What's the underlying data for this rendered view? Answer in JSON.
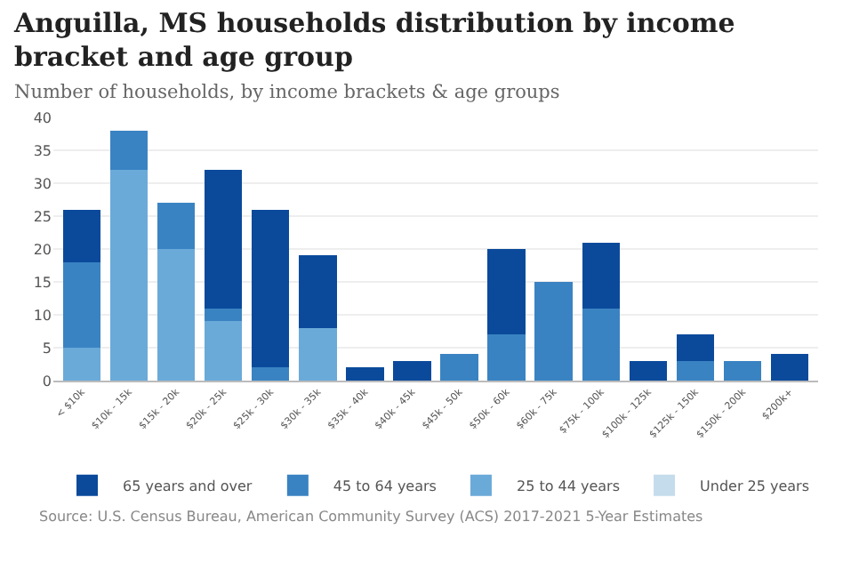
{
  "chart_data": {
    "type": "bar",
    "title": "Anguilla, MS households distribution by income bracket and age group",
    "subtitle": "Number of households, by income brackets & age groups",
    "annotations": [
      "Source: U.S. Census Bureau, American Community Survey (ACS) 2017-2021 5-Year Estimates"
    ],
    "categories": [
      "< $10k",
      "$10k - 15k",
      "$15k - 20k",
      "$20k - 25k",
      "$25k - 30k",
      "$30k - 35k",
      "$35k - 40k",
      "$40k - 45k",
      "$45k - 50k",
      "$50k - 60k",
      "$60k - 75k",
      "$75k - 100k",
      "$100k - 125k",
      "$125k - 150k",
      "$150k - 200k",
      "$200k+"
    ],
    "stacked": true,
    "ylim": [
      0,
      40
    ],
    "yticks": [
      0,
      5,
      10,
      15,
      20,
      25,
      30,
      35,
      40
    ],
    "grid": "y",
    "legend": "bottom",
    "series": [
      {
        "name": "Under 25 years",
        "color": "#c5dcec",
        "values": [
          0,
          0,
          0,
          0,
          0,
          0,
          0,
          0,
          0,
          0,
          0,
          0,
          0,
          0,
          0,
          0
        ]
      },
      {
        "name": "25 to 44 years",
        "color": "#6aaad9",
        "values": [
          5,
          32,
          20,
          9,
          0,
          8,
          0,
          0,
          0,
          0,
          0,
          0,
          0,
          0,
          0,
          0
        ]
      },
      {
        "name": "45 to 64 years",
        "color": "#3a83c2",
        "values": [
          13,
          6,
          7,
          2,
          2,
          0,
          0,
          0,
          4,
          7,
          15,
          11,
          0,
          3,
          3,
          0
        ]
      },
      {
        "name": "65 years and over",
        "color": "#0b4a9b",
        "values": [
          8,
          0,
          0,
          21,
          24,
          11,
          2,
          3,
          0,
          13,
          0,
          10,
          3,
          4,
          0,
          4
        ]
      }
    ]
  }
}
